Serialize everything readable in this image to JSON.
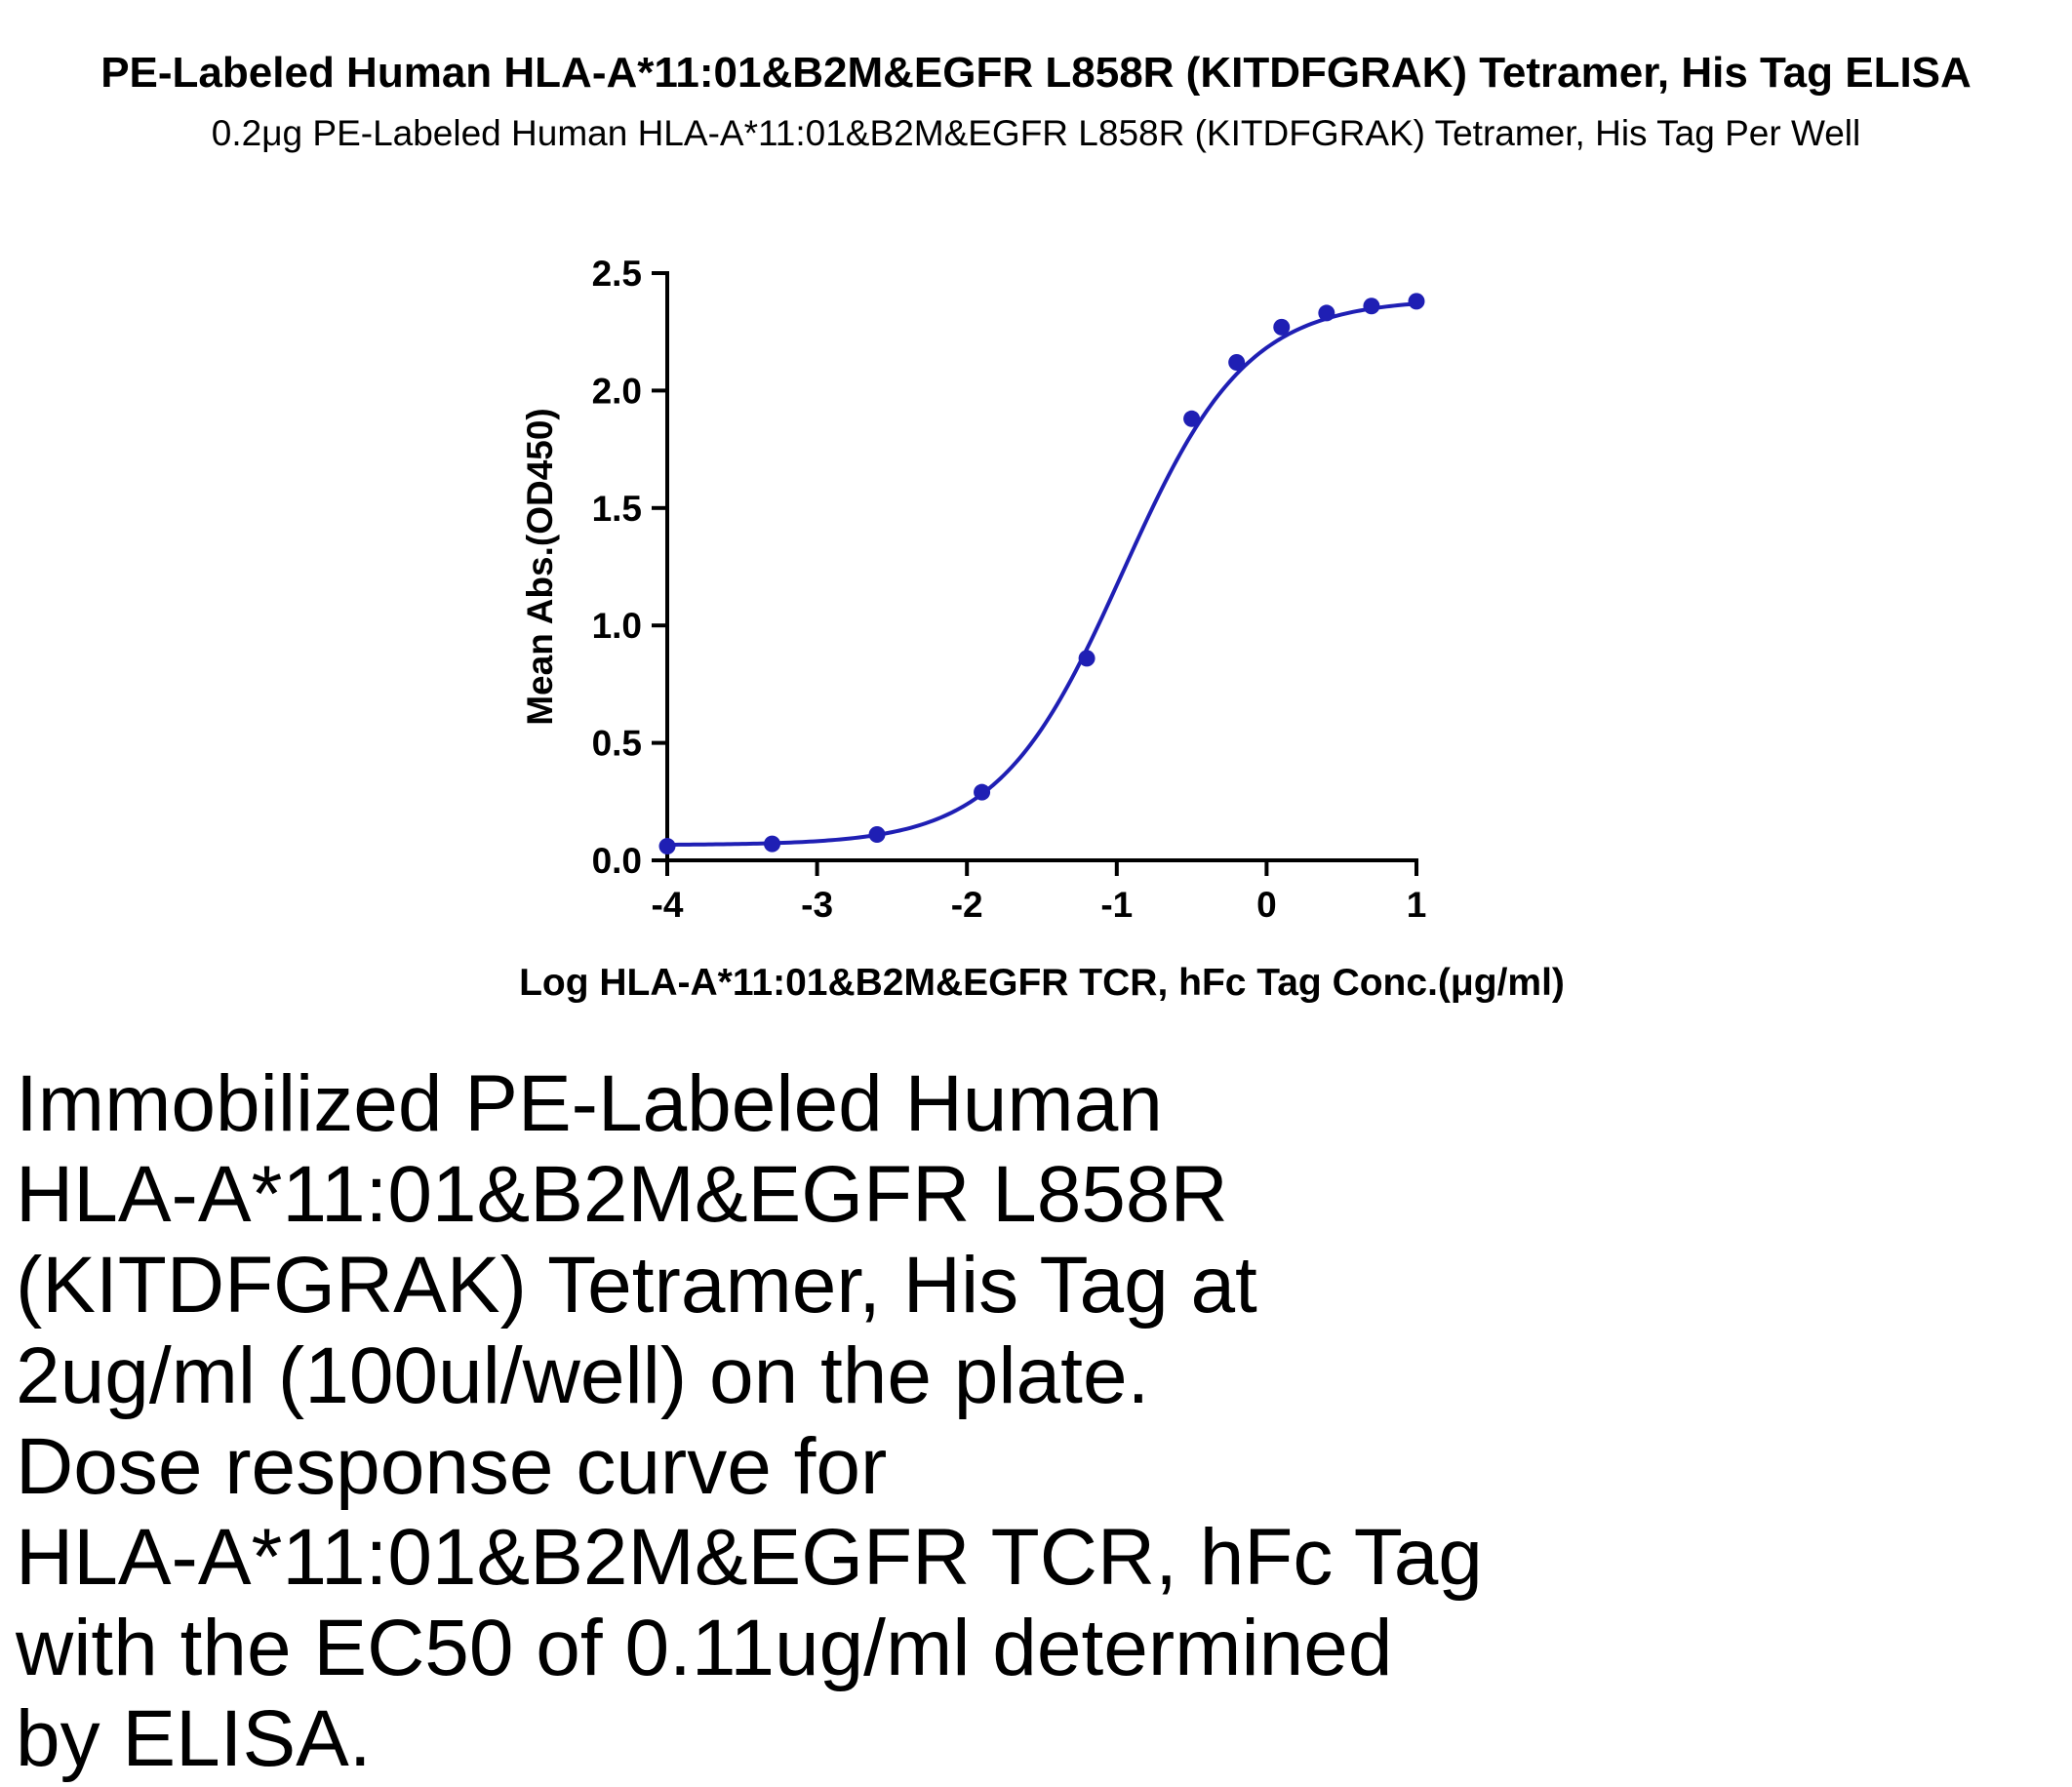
{
  "chart_data": {
    "type": "line",
    "title": "PE-Labeled Human HLA-A*11:01&B2M&EGFR L858R (KITDFGRAK) Tetramer, His Tag ELISA",
    "subtitle": "0.2μg PE-Labeled Human HLA-A*11:01&B2M&EGFR L858R (KITDFGRAK) Tetramer, His Tag Per Well",
    "xlabel": "Log HLA-A*11:01&B2M&EGFR TCR, hFc Tag Conc.(μg/ml)",
    "ylabel": "Mean Abs.(OD450)",
    "xlim": [
      -4,
      1
    ],
    "ylim": [
      0,
      2.5
    ],
    "xticks": [
      -4,
      -3,
      -2,
      -1,
      0,
      1
    ],
    "xtick_labels": [
      "-4",
      "-3",
      "-2",
      "-1",
      "0",
      "1"
    ],
    "yticks": [
      0,
      0.5,
      1.0,
      1.5,
      2.0,
      2.5
    ],
    "ytick_labels": [
      "0.0",
      "0.5",
      "1.0",
      "1.5",
      "2.0",
      "2.5"
    ],
    "grid": false,
    "color": "#1f1fb4",
    "series": [
      {
        "x": [
          -4.0,
          -3.3,
          -2.6,
          -1.9,
          -1.2,
          -0.5,
          -0.2,
          0.1,
          0.4,
          0.7,
          1.0
        ],
        "y": [
          0.06,
          0.07,
          0.11,
          0.29,
          0.86,
          1.88,
          2.12,
          2.27,
          2.33,
          2.36,
          2.38
        ]
      }
    ],
    "fit": {
      "model": "4PL",
      "bottom": 0.065,
      "top": 2.39,
      "log_ec50": -0.96,
      "hill": 1.05
    }
  },
  "description": [
    "Immobilized PE-Labeled Human",
    "HLA-A*11:01&B2M&EGFR L858R",
    "(KITDFGRAK) Tetramer, His Tag at",
    "2ug/ml (100ul/well) on the plate.",
    "Dose response curve for",
    "HLA-A*11:01&B2M&EGFR TCR, hFc Tag",
    "with the EC50 of 0.11ug/ml determined",
    "by ELISA."
  ]
}
